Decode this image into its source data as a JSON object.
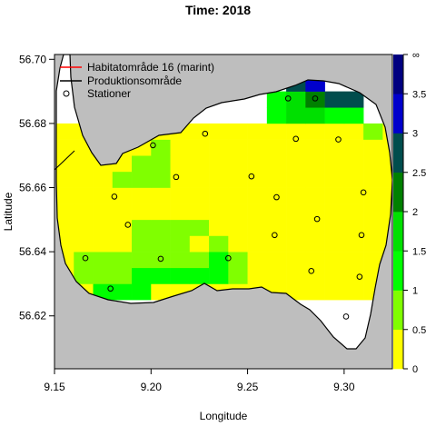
{
  "title": "Time: 2018",
  "x_axis": {
    "label": "Longitude",
    "ticks": [
      "9.15",
      "9.20",
      "9.25",
      "9.30"
    ]
  },
  "y_axis": {
    "label": "Latitude",
    "ticks": [
      "56.62",
      "56.64",
      "56.66",
      "56.68",
      "56.70"
    ]
  },
  "legend": {
    "items": [
      {
        "label": "Habitatområde 16 (marint)",
        "symbol": "line",
        "color": "#ff0000"
      },
      {
        "label": "Produktionsområde",
        "symbol": "line",
        "color": "#000000"
      },
      {
        "label": "Stationer",
        "symbol": "circle",
        "color": "#000000"
      }
    ]
  },
  "colorbar": {
    "labels": [
      "0",
      "0.5",
      "1",
      "1.5",
      "2",
      "2.5",
      "3",
      "3.5",
      "∞"
    ],
    "colors": [
      "#ffff00",
      "#80ff00",
      "#00ff00",
      "#00e000",
      "#008000",
      "#004d4d",
      "#0000cc",
      "#000080"
    ]
  },
  "colors": {
    "land": "#bebebe",
    "water": "#ffffff"
  },
  "chart_data": {
    "type": "heatmap",
    "title": "Time: 2018",
    "xlabel": "Longitude",
    "ylabel": "Latitude",
    "xlim": [
      9.15,
      9.325
    ],
    "ylim": [
      56.6035,
      56.7015
    ],
    "grid": false,
    "legend_position": "top-left",
    "cell_size": {
      "lon": 0.01,
      "lat": 0.005
    },
    "colorbar_breaks": [
      0,
      0.5,
      1,
      1.5,
      2,
      2.5,
      3,
      3.5,
      "∞"
    ],
    "stations": [
      [
        9.201,
        56.6732
      ],
      [
        9.228,
        56.6768
      ],
      [
        9.271,
        56.6878
      ],
      [
        9.285,
        56.6878
      ],
      [
        9.275,
        56.6752
      ],
      [
        9.297,
        56.675
      ],
      [
        9.213,
        56.6633
      ],
      [
        9.252,
        56.6635
      ],
      [
        9.181,
        56.6572
      ],
      [
        9.31,
        56.6585
      ],
      [
        9.265,
        56.657
      ],
      [
        9.188,
        56.6484
      ],
      [
        9.286,
        56.6502
      ],
      [
        9.264,
        56.6452
      ],
      [
        9.309,
        56.6452
      ],
      [
        9.166,
        56.638
      ],
      [
        9.205,
        56.6378
      ],
      [
        9.24,
        56.638
      ],
      [
        9.283,
        56.634
      ],
      [
        9.308,
        56.6322
      ],
      [
        9.179,
        56.6285
      ],
      [
        9.301,
        56.6198
      ]
    ],
    "rows": [
      {
        "lat": 56.6975,
        "cells": [
          [
            9.285,
            0.05
          ]
        ],
        "default": 0
      },
      {
        "lat": 56.6925,
        "cells": [
          [
            9.275,
            2.6
          ],
          [
            9.285,
            3.0
          ]
        ],
        "default": 0
      },
      {
        "lat": 56.6875,
        "cells": [
          [
            9.265,
            1.3
          ],
          [
            9.275,
            1.8
          ],
          [
            9.285,
            2.2
          ],
          [
            9.295,
            2.6
          ],
          [
            9.305,
            2.6
          ]
        ],
        "default": 0
      },
      {
        "lat": 56.6825,
        "cells": [
          [
            9.265,
            1.3
          ],
          [
            9.275,
            1.8
          ],
          [
            9.285,
            1.8
          ],
          [
            9.295,
            1.3
          ],
          [
            9.305,
            1.3
          ]
        ],
        "default": 0
      },
      {
        "lat": 56.6775,
        "cells": [
          [
            9.275,
            0.3
          ],
          [
            9.285,
            0.3
          ],
          [
            9.295,
            0.3
          ],
          [
            9.305,
            0.3
          ],
          [
            9.315,
            0.7
          ]
        ],
        "default": 0.3
      },
      {
        "lat": 56.6725,
        "cells": [
          [
            9.205,
            0.7
          ],
          [
            9.215,
            0.3
          ]
        ],
        "default": 0.3
      },
      {
        "lat": 56.6675,
        "cells": [
          [
            9.195,
            0.7
          ],
          [
            9.205,
            0.7
          ]
        ],
        "default": 0.3
      },
      {
        "lat": 56.6625,
        "cells": [
          [
            9.185,
            0.7
          ],
          [
            9.195,
            0.7
          ],
          [
            9.205,
            0.7
          ]
        ],
        "default": 0.3
      },
      {
        "lat": 56.6475,
        "cells": [
          [
            9.195,
            0.7
          ],
          [
            9.205,
            0.7
          ],
          [
            9.215,
            0.7
          ],
          [
            9.225,
            0.7
          ]
        ],
        "default": 0.3
      },
      {
        "lat": 56.6425,
        "cells": [
          [
            9.195,
            0.7
          ],
          [
            9.205,
            0.7
          ],
          [
            9.215,
            0.7
          ],
          [
            9.235,
            0.7
          ]
        ],
        "default": 0.3
      },
      {
        "lat": 56.6375,
        "cells": [
          [
            9.165,
            0.7
          ],
          [
            9.175,
            0.7
          ],
          [
            9.185,
            0.7
          ],
          [
            9.195,
            0.7
          ],
          [
            9.205,
            0.7
          ],
          [
            9.215,
            0.7
          ],
          [
            9.225,
            0.7
          ],
          [
            9.235,
            1.3
          ],
          [
            9.245,
            0.7
          ]
        ],
        "default": 0.3
      },
      {
        "lat": 56.6325,
        "cells": [
          [
            9.165,
            0.7
          ],
          [
            9.175,
            0.7
          ],
          [
            9.185,
            0.7
          ],
          [
            9.195,
            1.3
          ],
          [
            9.205,
            1.3
          ],
          [
            9.215,
            1.3
          ],
          [
            9.225,
            1.3
          ],
          [
            9.235,
            1.3
          ],
          [
            9.245,
            0.7
          ]
        ],
        "default": 0.3
      },
      {
        "lat": 56.6275,
        "cells": [
          [
            9.165,
            0.3
          ],
          [
            9.175,
            1.3
          ],
          [
            9.185,
            1.3
          ],
          [
            9.195,
            1.3
          ]
        ],
        "default": 0.3
      }
    ]
  }
}
